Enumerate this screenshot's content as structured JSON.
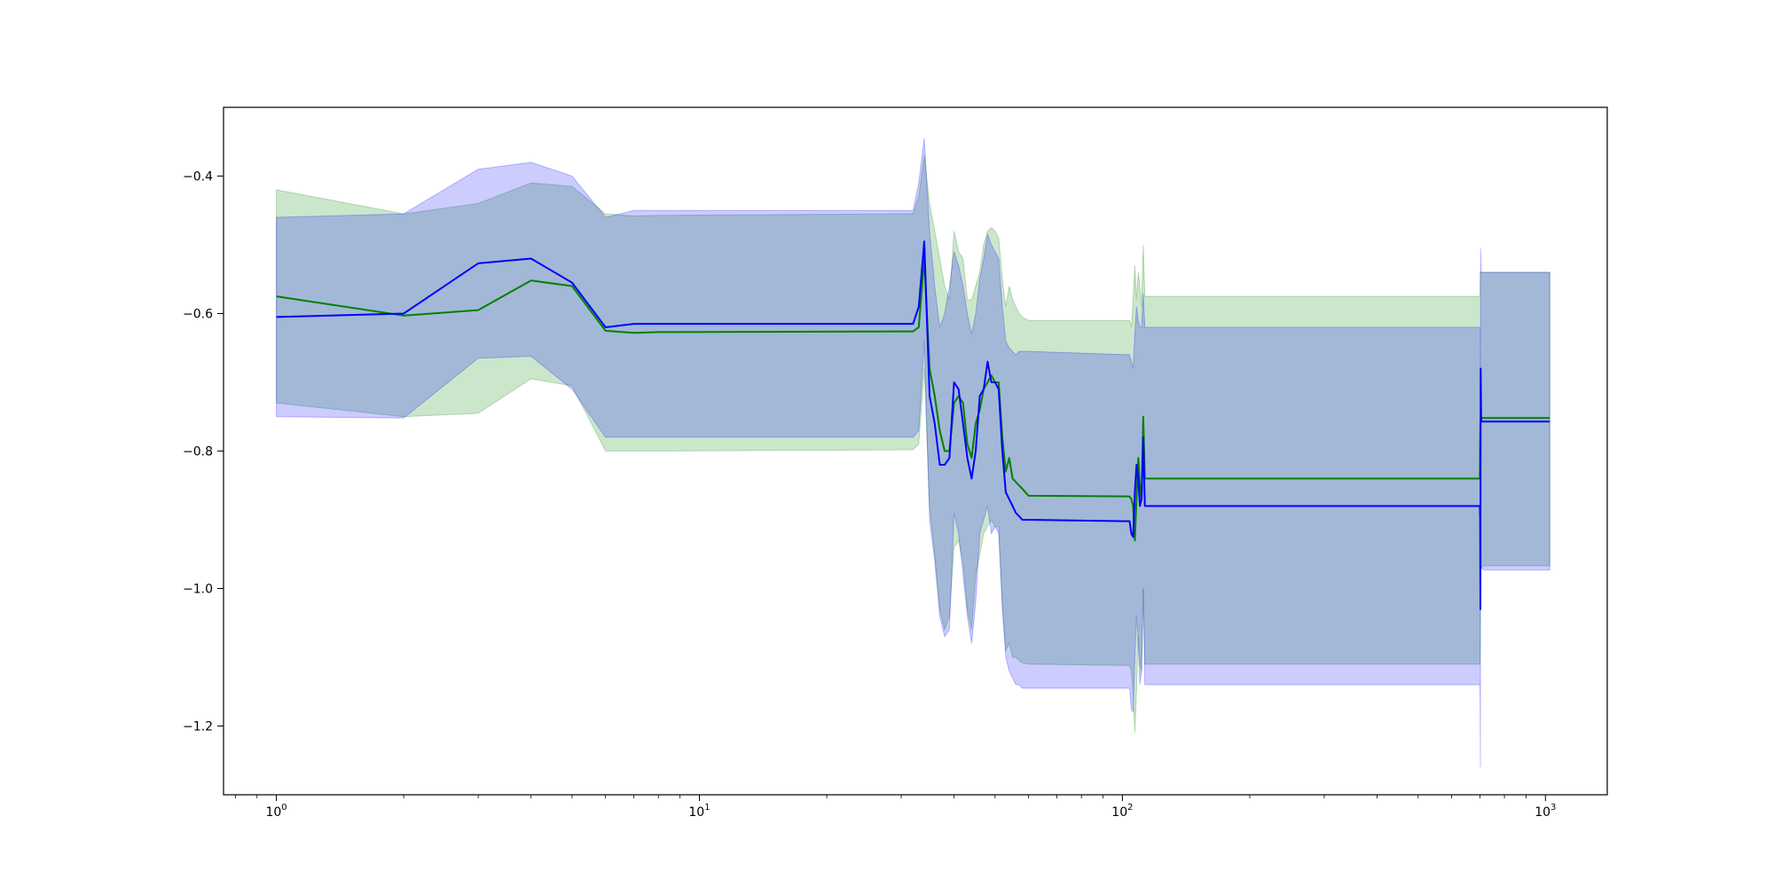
{
  "chart_data": {
    "type": "line",
    "title": "",
    "xlabel": "",
    "ylabel": "",
    "xscale": "log",
    "xlim": [
      0.75,
      1400
    ],
    "ylim": [
      -1.3,
      -0.3
    ],
    "grid": false,
    "legend": "none",
    "x_ticks": [
      {
        "value": 1,
        "base": "10",
        "exp": "0"
      },
      {
        "value": 10,
        "base": "10",
        "exp": "1"
      },
      {
        "value": 100,
        "base": "10",
        "exp": "2"
      },
      {
        "value": 1000,
        "base": "10",
        "exp": "3"
      }
    ],
    "y_ticks": [
      {
        "value": -0.4,
        "label": "−0.4"
      },
      {
        "value": -0.6,
        "label": "−0.6"
      },
      {
        "value": -0.8,
        "label": "−0.8"
      },
      {
        "value": -1.0,
        "label": "−1.0"
      },
      {
        "value": -1.2,
        "label": "−1.2"
      }
    ],
    "series": [
      {
        "color": "#008000",
        "band_color": "#008000",
        "band_opacity": 0.2,
        "x": [
          1,
          2,
          3,
          4,
          5,
          6,
          7,
          8,
          32,
          33,
          34,
          35,
          36,
          37,
          38,
          39,
          40,
          41,
          42,
          43,
          44,
          45,
          46,
          47,
          48,
          49,
          50,
          51,
          52,
          53,
          54,
          55,
          56,
          57,
          58,
          60,
          104,
          105,
          106,
          107,
          108,
          109,
          110,
          111,
          112,
          113,
          700,
          701,
          702,
          703,
          705,
          710,
          720,
          1024
        ],
        "y": [
          -0.575,
          -0.603,
          -0.595,
          -0.552,
          -0.56,
          -0.625,
          -0.628,
          -0.627,
          -0.626,
          -0.62,
          -0.52,
          -0.68,
          -0.72,
          -0.77,
          -0.8,
          -0.8,
          -0.73,
          -0.72,
          -0.73,
          -0.79,
          -0.81,
          -0.76,
          -0.74,
          -0.71,
          -0.7,
          -0.69,
          -0.7,
          -0.7,
          -0.78,
          -0.83,
          -0.81,
          -0.84,
          -0.845,
          -0.85,
          -0.855,
          -0.865,
          -0.866,
          -0.87,
          -0.88,
          -0.93,
          -0.87,
          -0.81,
          -0.85,
          -0.87,
          -0.75,
          -0.84,
          -0.84,
          -0.79,
          -0.76,
          -0.755,
          -0.753,
          -0.752,
          -0.752,
          -0.752
        ],
        "upper": [
          -0.42,
          -0.455,
          -0.44,
          -0.41,
          -0.415,
          -0.455,
          -0.458,
          -0.457,
          -0.455,
          -0.43,
          -0.37,
          -0.44,
          -0.48,
          -0.52,
          -0.56,
          -0.58,
          -0.48,
          -0.51,
          -0.52,
          -0.58,
          -0.58,
          -0.56,
          -0.54,
          -0.5,
          -0.48,
          -0.475,
          -0.48,
          -0.49,
          -0.55,
          -0.59,
          -0.56,
          -0.58,
          -0.59,
          -0.6,
          -0.605,
          -0.61,
          -0.61,
          -0.62,
          -0.58,
          -0.53,
          -0.58,
          -0.54,
          -0.56,
          -0.59,
          -0.5,
          -0.575,
          -0.575,
          -0.54,
          -0.54,
          -0.54,
          -0.54,
          -0.54,
          -0.54,
          -0.54
        ],
        "lower": [
          -0.73,
          -0.75,
          -0.745,
          -0.695,
          -0.705,
          -0.8,
          -0.8,
          -0.8,
          -0.798,
          -0.79,
          -0.68,
          -0.88,
          -0.95,
          -1.03,
          -1.06,
          -1.04,
          -0.94,
          -0.93,
          -0.96,
          -1.03,
          -1.06,
          -0.98,
          -0.95,
          -0.92,
          -0.91,
          -0.9,
          -0.91,
          -0.91,
          -1.02,
          -1.09,
          -1.08,
          -1.1,
          -1.1,
          -1.105,
          -1.108,
          -1.11,
          -1.112,
          -1.12,
          -1.15,
          -1.21,
          -1.15,
          -1.07,
          -1.11,
          -1.12,
          -1.0,
          -1.11,
          -1.11,
          -1.05,
          -0.99,
          -0.975,
          -0.97,
          -0.968,
          -0.967,
          -0.967
        ]
      },
      {
        "color": "#0000ff",
        "band_color": "#0000ff",
        "band_opacity": 0.2,
        "x": [
          1,
          2,
          3,
          4,
          5,
          6,
          7,
          8,
          32,
          33,
          34,
          35,
          36,
          37,
          38,
          39,
          40,
          41,
          42,
          43,
          44,
          45,
          46,
          47,
          48,
          49,
          50,
          51,
          52,
          53,
          54,
          55,
          56,
          57,
          58,
          60,
          104,
          105,
          106,
          107,
          108,
          109,
          110,
          111,
          112,
          113,
          700,
          701,
          702,
          703,
          705,
          710,
          720,
          1024
        ],
        "y": [
          -0.605,
          -0.6,
          -0.527,
          -0.52,
          -0.555,
          -0.62,
          -0.615,
          -0.615,
          -0.615,
          -0.59,
          -0.495,
          -0.72,
          -0.76,
          -0.82,
          -0.82,
          -0.81,
          -0.7,
          -0.71,
          -0.76,
          -0.81,
          -0.84,
          -0.8,
          -0.72,
          -0.71,
          -0.67,
          -0.7,
          -0.7,
          -0.71,
          -0.8,
          -0.86,
          -0.87,
          -0.88,
          -0.89,
          -0.895,
          -0.9,
          -0.9,
          -0.902,
          -0.92,
          -0.925,
          -0.86,
          -0.82,
          -0.84,
          -0.88,
          -0.87,
          -0.78,
          -0.88,
          -0.88,
          -0.9,
          -1.03,
          -0.68,
          -0.757,
          -0.757,
          -0.757,
          -0.757
        ],
        "upper": [
          -0.46,
          -0.455,
          -0.39,
          -0.38,
          -0.4,
          -0.46,
          -0.45,
          -0.45,
          -0.45,
          -0.41,
          -0.345,
          -0.48,
          -0.56,
          -0.62,
          -0.6,
          -0.56,
          -0.51,
          -0.53,
          -0.56,
          -0.6,
          -0.63,
          -0.6,
          -0.55,
          -0.52,
          -0.485,
          -0.5,
          -0.51,
          -0.52,
          -0.59,
          -0.64,
          -0.65,
          -0.655,
          -0.66,
          -0.655,
          -0.655,
          -0.655,
          -0.66,
          -0.67,
          -0.68,
          -0.63,
          -0.59,
          -0.61,
          -0.62,
          -0.62,
          -0.57,
          -0.62,
          -0.62,
          -0.65,
          -0.73,
          -0.505,
          -0.54,
          -0.54,
          -0.54,
          -0.54
        ],
        "lower": [
          -0.75,
          -0.752,
          -0.665,
          -0.662,
          -0.71,
          -0.78,
          -0.78,
          -0.78,
          -0.78,
          -0.77,
          -0.64,
          -0.9,
          -0.96,
          -1.04,
          -1.07,
          -1.06,
          -0.89,
          -0.92,
          -0.98,
          -1.04,
          -1.08,
          -1.02,
          -0.92,
          -0.9,
          -0.88,
          -0.92,
          -0.91,
          -0.92,
          -1.03,
          -1.1,
          -1.12,
          -1.13,
          -1.14,
          -1.14,
          -1.145,
          -1.145,
          -1.145,
          -1.175,
          -1.18,
          -1.1,
          -1.04,
          -1.08,
          -1.14,
          -1.12,
          -1.0,
          -1.14,
          -1.14,
          -1.16,
          -1.26,
          -0.87,
          -0.97,
          -0.972,
          -0.973,
          -0.973
        ]
      }
    ]
  }
}
